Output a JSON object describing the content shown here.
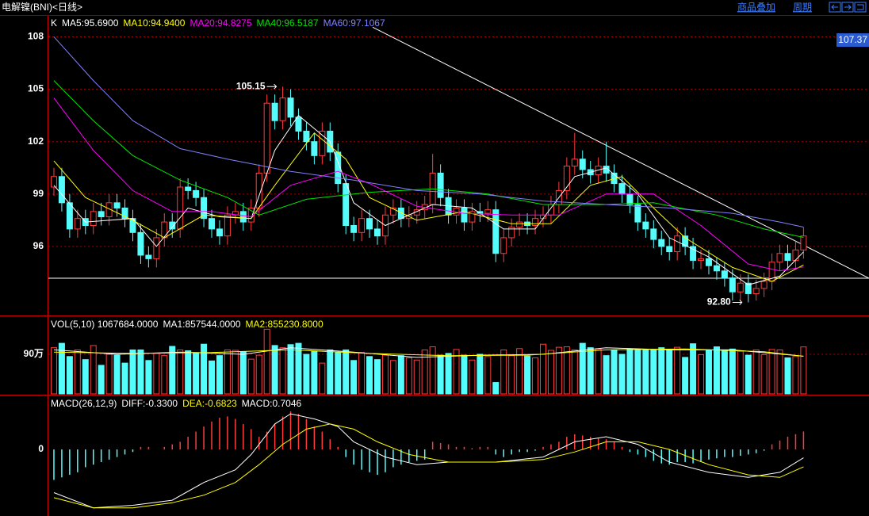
{
  "header": {
    "title": "电解镍(BNI)<日线>",
    "links": [
      "商品叠加",
      "周期"
    ]
  },
  "chart_data": [
    {
      "type": "candlestick",
      "title": "K",
      "xlim": [
        -0.7,
        103.3
      ],
      "ylim": [
        92.05,
        109.2
      ],
      "yticks": [
        96,
        99,
        102,
        105,
        108
      ],
      "grid": true,
      "open": [
        99.4,
        100.0,
        98.5,
        97.0,
        97.6,
        97.2,
        98.0,
        97.7,
        98.5,
        98.2,
        97.6,
        96.8,
        95.5,
        95.3,
        96.5,
        97.4,
        97.0,
        99.4,
        99.2,
        98.8,
        97.6,
        97.0,
        96.6,
        97.8,
        98.0,
        97.4,
        98.2,
        100.2,
        104.2,
        103.2,
        104.5,
        103.4,
        102.6,
        102.0,
        101.2,
        102.6,
        101.4,
        99.6,
        97.2,
        96.8,
        97.6,
        97.0,
        96.6,
        97.8,
        98.2,
        97.6,
        97.8,
        98.1,
        98.4,
        100.2,
        98.8,
        97.8,
        98.2,
        97.4,
        98.0,
        97.9,
        98.1,
        95.6,
        96.5,
        97.1,
        97.4,
        97.2,
        97.6,
        97.8,
        98.4,
        99.2,
        100.6,
        101.0,
        100.4,
        100.1,
        100.6,
        100.2,
        99.6,
        99.0,
        98.4,
        97.4,
        97.0,
        96.4,
        96.0,
        95.7,
        96.6,
        96.0,
        95.2,
        95.3,
        94.9,
        94.6,
        94.2,
        93.4,
        93.9,
        93.3,
        93.6,
        94.0,
        95.1,
        95.6,
        95.2,
        95.8
      ],
      "high": [
        100.5,
        100.5,
        99.0,
        98.1,
        98.1,
        98.5,
        98.5,
        99.0,
        99.0,
        98.7,
        98.1,
        97.3,
        96.0,
        97.0,
        97.9,
        97.9,
        99.9,
        99.9,
        99.7,
        99.3,
        98.1,
        97.5,
        98.3,
        98.5,
        98.5,
        98.7,
        100.7,
        104.7,
        104.7,
        105.15,
        105.0,
        103.9,
        103.1,
        102.5,
        103.1,
        103.1,
        101.9,
        100.1,
        97.7,
        98.1,
        98.1,
        97.5,
        98.3,
        98.7,
        98.7,
        98.3,
        98.6,
        98.9,
        101.3,
        100.7,
        99.3,
        98.7,
        98.7,
        98.5,
        98.5,
        98.6,
        98.6,
        97.0,
        97.6,
        97.9,
        97.9,
        98.1,
        98.3,
        98.9,
        99.7,
        101.1,
        102.5,
        101.5,
        100.9,
        101.1,
        102.0,
        100.7,
        100.1,
        99.5,
        98.9,
        97.9,
        97.5,
        96.9,
        96.5,
        97.1,
        97.1,
        96.5,
        95.8,
        95.8,
        95.4,
        95.1,
        94.7,
        94.4,
        94.4,
        94.1,
        94.5,
        95.6,
        96.1,
        96.1,
        96.3,
        97.1
      ],
      "low": [
        98.9,
        98.0,
        96.5,
        96.5,
        96.7,
        96.7,
        97.2,
        97.2,
        97.7,
        97.1,
        96.3,
        95.0,
        94.8,
        94.8,
        96.0,
        96.5,
        96.5,
        98.7,
        98.3,
        97.1,
        96.5,
        96.1,
        96.1,
        97.3,
        96.9,
        96.9,
        97.7,
        99.7,
        102.7,
        102.7,
        102.9,
        102.1,
        101.5,
        100.7,
        100.7,
        100.9,
        99.1,
        96.7,
        96.3,
        96.3,
        96.5,
        96.1,
        96.1,
        97.3,
        97.1,
        97.1,
        97.3,
        97.6,
        97.9,
        98.3,
        97.3,
        97.3,
        96.9,
        96.9,
        97.4,
        97.4,
        95.1,
        95.1,
        96.0,
        96.6,
        96.7,
        96.7,
        97.1,
        97.3,
        97.9,
        98.7,
        100.1,
        99.9,
        99.6,
        99.6,
        99.7,
        99.1,
        98.5,
        97.9,
        96.9,
        96.5,
        95.9,
        95.5,
        95.2,
        95.2,
        95.5,
        94.7,
        94.7,
        94.4,
        94.1,
        93.7,
        92.9,
        92.9,
        92.8,
        92.9,
        93.1,
        93.5,
        94.6,
        94.7,
        94.7,
        95.3
      ],
      "close": [
        100.0,
        98.5,
        97.0,
        97.6,
        97.2,
        98.0,
        97.7,
        98.5,
        98.2,
        97.6,
        96.8,
        95.5,
        95.3,
        96.5,
        97.4,
        97.0,
        99.4,
        99.2,
        98.8,
        97.6,
        97.0,
        96.6,
        97.8,
        98.0,
        97.4,
        98.2,
        100.2,
        104.2,
        103.2,
        104.5,
        103.4,
        102.6,
        102.0,
        101.2,
        102.6,
        101.4,
        99.6,
        97.2,
        96.8,
        97.6,
        97.0,
        96.6,
        97.8,
        98.2,
        97.6,
        97.8,
        98.1,
        98.4,
        100.2,
        98.8,
        97.8,
        98.2,
        97.4,
        98.0,
        97.9,
        98.1,
        95.6,
        96.5,
        97.1,
        97.4,
        97.2,
        97.6,
        97.8,
        98.4,
        99.2,
        100.6,
        101.0,
        100.4,
        100.1,
        100.6,
        100.2,
        99.6,
        99.0,
        98.4,
        97.4,
        97.0,
        96.4,
        96.0,
        95.7,
        96.6,
        96.0,
        95.2,
        95.3,
        94.9,
        94.6,
        94.2,
        93.4,
        93.9,
        93.3,
        93.6,
        94.0,
        95.1,
        95.6,
        95.2,
        95.8,
        96.6
      ],
      "up_color": "#ff3c3c",
      "down_color": "#54fcfc",
      "series": [
        {
          "name": "MA5",
          "label": "MA5:95.6900",
          "color": "#ffffff",
          "x": [
            0,
            4,
            10,
            13,
            17,
            21,
            25,
            28,
            31,
            35,
            38,
            42,
            48,
            53,
            57,
            61,
            66,
            70,
            74,
            78,
            83,
            88,
            92,
            95
          ],
          "values": [
            99.5,
            97.4,
            97.6,
            96.0,
            98.2,
            97.7,
            97.6,
            101.5,
            103.5,
            102.0,
            98.5,
            97.2,
            98.4,
            98.2,
            97.0,
            97.0,
            100.0,
            100.5,
            99.0,
            96.5,
            95.4,
            93.8,
            94.3,
            95.69
          ]
        },
        {
          "name": "MA10",
          "label": "MA10:94.9400",
          "color": "#ffff00",
          "x": [
            0,
            4,
            10,
            14,
            19,
            25,
            28,
            33,
            37,
            40,
            46,
            52,
            58,
            63,
            68,
            72,
            76,
            80,
            86,
            91,
            95
          ],
          "values": [
            100.9,
            98.8,
            97.5,
            96.5,
            97.8,
            97.6,
            99.5,
            102.5,
            101.0,
            98.8,
            97.5,
            98.0,
            97.3,
            97.3,
            99.5,
            100.0,
            98.2,
            96.5,
            94.8,
            94.0,
            94.94
          ]
        },
        {
          "name": "MA20",
          "label": "MA20:94.8275",
          "color": "#ff00ff",
          "x": [
            0,
            5,
            10,
            15,
            20,
            25,
            30,
            36,
            40,
            46,
            52,
            58,
            64,
            70,
            76,
            82,
            88,
            92,
            95
          ],
          "values": [
            104.5,
            101.5,
            99.2,
            98.0,
            98.0,
            97.7,
            99.5,
            100.3,
            99.6,
            98.3,
            97.9,
            97.8,
            97.8,
            99.0,
            99.0,
            97.2,
            95.0,
            94.6,
            94.83
          ]
        },
        {
          "name": "MA40",
          "label": "MA40:96.5187",
          "color": "#00e600",
          "x": [
            0,
            5,
            10,
            16,
            22,
            26,
            32,
            40,
            48,
            55,
            62,
            70,
            76,
            84,
            90,
            95
          ],
          "values": [
            105.5,
            103.2,
            101.2,
            99.8,
            98.8,
            97.8,
            98.7,
            99.1,
            99.3,
            99.0,
            98.4,
            98.4,
            98.5,
            97.8,
            97.0,
            96.52
          ]
        },
        {
          "name": "MA60",
          "label": "MA60:97.1067",
          "color": "#8080ff",
          "x": [
            0,
            5,
            10,
            16,
            22,
            30,
            38,
            46,
            54,
            62,
            70,
            78,
            86,
            92,
            95
          ],
          "values": [
            108.0,
            105.5,
            103.2,
            101.6,
            101.0,
            100.3,
            99.8,
            99.2,
            99.0,
            98.6,
            98.4,
            98.2,
            97.9,
            97.4,
            97.11
          ]
        }
      ],
      "trend_lines": [
        {
          "x": [
            40.4,
            103.3
          ],
          "values": [
            108.55,
            94.18
          ]
        },
        {
          "x": [
            -0.7,
            103.3
          ],
          "values": [
            94.18,
            94.18
          ]
        }
      ],
      "annotations": [
        {
          "text": "105.15",
          "x": 29,
          "y": 105.15
        },
        {
          "text": "92.80",
          "x": 88,
          "y": 92.8
        }
      ],
      "price_tag": {
        "value": 107.37,
        "label": "107.37"
      }
    },
    {
      "type": "volume",
      "title": "VOL(5,10) 1067684.0000",
      "xlim": [
        -0.7,
        103.3
      ],
      "ylim": [
        0,
        1746000
      ],
      "yticks": [
        {
          "value": 900000,
          "label": "90万"
        }
      ],
      "grid": true,
      "values": [
        1050000,
        1150000,
        850000,
        1000000,
        780000,
        1100000,
        650000,
        900000,
        880000,
        700000,
        1000000,
        1000000,
        760000,
        920000,
        870000,
        1080000,
        1000000,
        980000,
        940000,
        1130000,
        750000,
        870000,
        1000000,
        990000,
        960000,
        790000,
        880000,
        1470000,
        1100000,
        1050000,
        1120000,
        1150000,
        900000,
        970000,
        700000,
        1000000,
        940000,
        1000000,
        760000,
        940000,
        850000,
        780000,
        880000,
        760000,
        870000,
        820000,
        770000,
        1000000,
        1070000,
        880000,
        920000,
        1010000,
        880000,
        770000,
        900000,
        850000,
        260000,
        1000000,
        870000,
        1030000,
        860000,
        820000,
        1130000,
        990000,
        1060000,
        1070000,
        1000000,
        1150000,
        1050000,
        1020000,
        870000,
        1000000,
        900000,
        1020000,
        1000000,
        1000000,
        1000000,
        1050000,
        1000000,
        1060000,
        830000,
        1140000,
        890000,
        1000000,
        1070000,
        1000000,
        1020000,
        970000,
        880000,
        1000000,
        890000,
        1010000,
        1000000,
        820000,
        850000,
        1067684
      ],
      "series": [
        {
          "name": "MA1",
          "label": "MA1:857544.0000",
          "color": "#ffffff",
          "x": [
            0,
            8,
            16,
            24,
            30,
            38,
            46,
            54,
            62,
            70,
            78,
            86,
            95
          ],
          "values": [
            1000000,
            900000,
            950000,
            900000,
            1050000,
            950000,
            830000,
            880000,
            900000,
            1050000,
            1000000,
            1000000,
            857544
          ]
        },
        {
          "name": "MA2",
          "label": "MA2:855230.8000",
          "color": "#ffff00",
          "x": [
            0,
            10,
            20,
            30,
            40,
            50,
            60,
            70,
            80,
            90,
            95
          ],
          "values": [
            950000,
            920000,
            940000,
            1000000,
            920000,
            870000,
            880000,
            1000000,
            1020000,
            960000,
            855230.8
          ]
        }
      ]
    },
    {
      "type": "macd",
      "title": "MACD(26,12,9)",
      "label": "MACD:0.7046",
      "xlim": [
        -0.7,
        103.3
      ],
      "ylim": [
        -2.62,
        2.09
      ],
      "yticks": [
        0
      ],
      "values": [
        -1.2,
        -1.1,
        -1.0,
        -0.9,
        -0.7,
        -0.6,
        -0.5,
        -0.4,
        -0.3,
        -0.2,
        -0.1,
        0.1,
        0.1,
        0.0,
        0.1,
        0.2,
        0.3,
        0.5,
        0.7,
        0.9,
        1.1,
        1.25,
        1.3,
        1.2,
        1.0,
        0.8,
        0.5,
        0.7,
        1.0,
        1.3,
        1.5,
        1.4,
        1.2,
        0.9,
        0.7,
        0.4,
        0.1,
        -0.3,
        -0.6,
        -0.8,
        -0.9,
        -1.0,
        -0.9,
        -0.7,
        -0.6,
        -0.5,
        -0.45,
        -0.4,
        0.3,
        0.25,
        0.2,
        0.1,
        0.1,
        0.05,
        0.1,
        0.1,
        -0.2,
        -0.3,
        -0.2,
        -0.1,
        -0.1,
        -0.05,
        0.1,
        0.2,
        0.3,
        0.5,
        0.6,
        0.55,
        0.5,
        0.45,
        0.4,
        0.3,
        0.1,
        -0.1,
        -0.2,
        -0.3,
        -0.45,
        -0.55,
        -0.6,
        -0.5,
        -0.5,
        -0.55,
        -0.5,
        -0.4,
        -0.35,
        -0.3,
        -0.3,
        -0.25,
        -0.2,
        -0.15,
        -0.05,
        0.2,
        0.35,
        0.5,
        0.6,
        0.7046
      ],
      "pos_color": "#ff3c3c",
      "neg_color": "#54fcfc",
      "series": [
        {
          "name": "DIFF",
          "label": "DIFF:-0.3300",
          "color": "#ffffff",
          "x": [
            0,
            5,
            10,
            15,
            19,
            23,
            25,
            28,
            30,
            33,
            36,
            38,
            42,
            46,
            50,
            56,
            62,
            66,
            70,
            74,
            78,
            83,
            88,
            92,
            95
          ],
          "values": [
            -1.7,
            -2.3,
            -2.2,
            -2.0,
            -1.3,
            -0.8,
            -0.2,
            1.0,
            1.4,
            1.2,
            0.9,
            0.3,
            -0.3,
            -0.6,
            -0.5,
            -0.5,
            -0.3,
            0.3,
            0.5,
            0.2,
            -0.5,
            -0.9,
            -1.1,
            -0.9,
            -0.33
          ]
        },
        {
          "name": "DEA",
          "label": "DEA:-0.6823",
          "color": "#ffff00",
          "x": [
            0,
            5,
            10,
            15,
            19,
            23,
            26,
            29,
            32,
            35,
            38,
            41,
            45,
            50,
            56,
            62,
            66,
            70,
            74,
            78,
            83,
            88,
            92,
            95
          ],
          "values": [
            -1.9,
            -2.3,
            -2.3,
            -2.1,
            -1.8,
            -1.3,
            -0.6,
            0.2,
            0.8,
            1.0,
            0.8,
            0.3,
            -0.2,
            -0.5,
            -0.5,
            -0.4,
            -0.1,
            0.3,
            0.3,
            0.0,
            -0.6,
            -1.0,
            -1.1,
            -0.6823
          ]
        }
      ]
    }
  ]
}
